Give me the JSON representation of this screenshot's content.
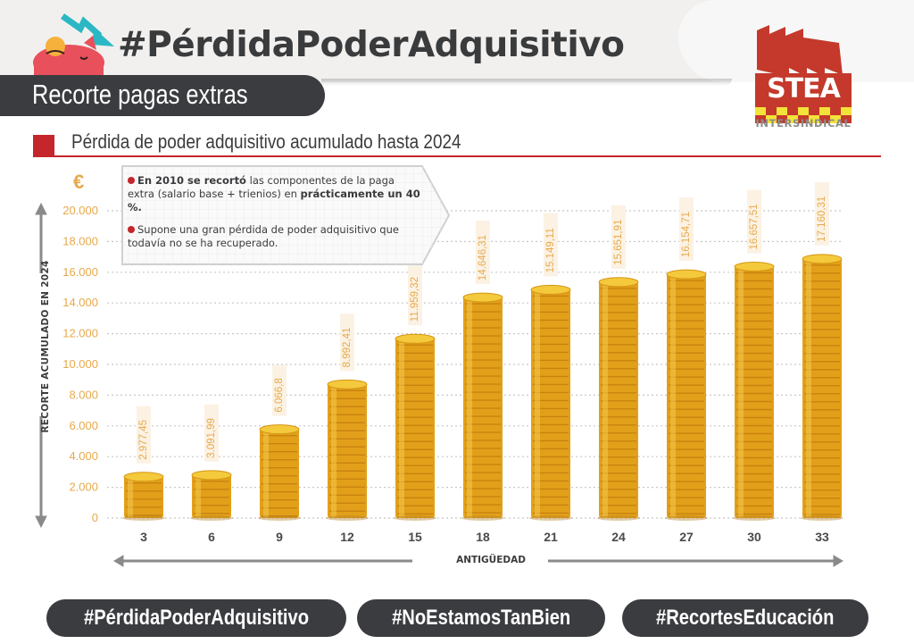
{
  "header": {
    "main_title": "#PérdidaPoderAdquisitivo",
    "subtitle": "Recorte pagas extras",
    "logo": {
      "name": "STEA",
      "tagline": "INTERSINDICAL"
    }
  },
  "section": {
    "title": "Pérdida de poder adquisitivo acumulado hasta 2024"
  },
  "callout": {
    "point1_bold": "En 2010 se recortó",
    "point1_rest": " las componentes de la paga extra (salario base + trienios) en ",
    "point1_bold2": "prácticamente un 40 %.",
    "point2": "Supone una gran pérdida de poder adquisitivo que todavía no se ha recuperado."
  },
  "footer": {
    "hashtags": [
      "#PérdidaPoderAdquisitivo",
      "#NoEstamosTanBien",
      "#RecortesEducación"
    ]
  },
  "colors": {
    "accent_red": "#c4262b",
    "dark": "#3b3c40",
    "gold": "#e8a94a",
    "coin": "#e6a91c",
    "teal": "#2bb8c4",
    "pig": "#e8505b"
  },
  "chart_data": {
    "type": "bar",
    "title": "Pérdida de poder adquisitivo acumulado hasta 2024",
    "xlabel": "ANTIGÜEDAD",
    "ylabel": "RECORTE ACUMULADO EN 2024",
    "unit": "€",
    "categories": [
      "3",
      "6",
      "9",
      "12",
      "15",
      "18",
      "21",
      "24",
      "27",
      "30",
      "33"
    ],
    "values": [
      2977.45,
      3091.99,
      6066.8,
      8992.41,
      11959.32,
      14646.31,
      15149.11,
      15651.91,
      16154.71,
      16657.51,
      17160.31
    ],
    "value_labels": [
      "2.977,45",
      "3.091,99",
      "6.066,8",
      "8.992,41",
      "11.959,32",
      "14.646,31",
      "15.149,11",
      "15.651,91",
      "16.154,71",
      "16.657,51",
      "17.160,31"
    ],
    "ylim": [
      0,
      20000
    ],
    "yticks": [
      0,
      2000,
      4000,
      6000,
      8000,
      10000,
      12000,
      14000,
      16000,
      18000,
      20000
    ],
    "ytick_labels": [
      "0",
      "2.000",
      "4.000",
      "6.000",
      "8.000",
      "10.000",
      "12.000",
      "14.000",
      "16.000",
      "18.000",
      "20.000"
    ],
    "grid": true,
    "legend": "none"
  }
}
